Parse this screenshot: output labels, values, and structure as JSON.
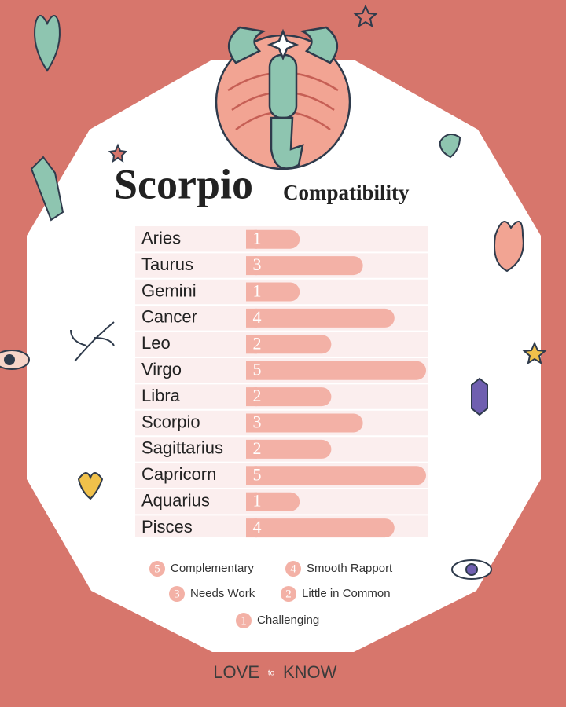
{
  "chart_data": {
    "type": "bar",
    "title": "Scorpio",
    "subtitle": "Compatibility",
    "categories": [
      "Aries",
      "Taurus",
      "Gemini",
      "Cancer",
      "Leo",
      "Virgo",
      "Libra",
      "Scorpio",
      "Sagittarius",
      "Capricorn",
      "Aquarius",
      "Pisces"
    ],
    "values": [
      1,
      3,
      1,
      4,
      2,
      5,
      2,
      3,
      2,
      5,
      1,
      4
    ],
    "color": "#f3b1a6",
    "xlim": [
      0,
      5
    ],
    "legend": [
      {
        "value": 5,
        "label": "Complementary"
      },
      {
        "value": 4,
        "label": "Smooth Rapport"
      },
      {
        "value": 3,
        "label": "Needs Work"
      },
      {
        "value": 2,
        "label": "Little in Common"
      },
      {
        "value": 1,
        "label": "Challenging"
      }
    ],
    "brand": [
      "LOVE",
      "to",
      "KNOW"
    ]
  }
}
